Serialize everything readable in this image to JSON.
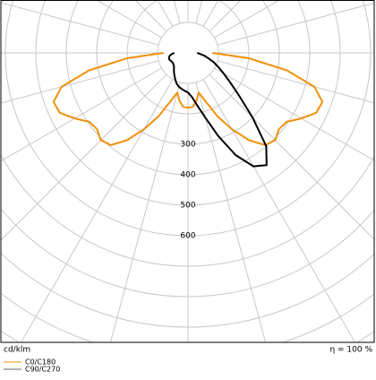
{
  "chart_data": {
    "type": "polar",
    "angles": [
      -90,
      -85,
      -80,
      -75,
      -70,
      -65,
      -60,
      -55,
      -50,
      -45,
      -40,
      -35,
      -30,
      -25,
      -20,
      -15,
      -10,
      -5,
      0,
      5,
      10,
      15,
      20,
      25,
      30,
      35,
      40,
      45,
      50,
      55,
      60,
      65,
      70,
      75,
      80,
      85,
      90
    ],
    "series": [
      {
        "name": "C0/C180",
        "color": "#f0900a",
        "values": [
          80,
          200,
          330,
          430,
          470,
          465,
          430,
          395,
          390,
          405,
          395,
          350,
          290,
          230,
          170,
          135,
          160,
          178,
          180,
          178,
          160,
          135,
          170,
          230,
          290,
          350,
          395,
          405,
          390,
          395,
          430,
          465,
          470,
          430,
          330,
          200,
          80
        ]
      },
      {
        "name": "C90/C270",
        "color": "#000000",
        "legend_color": "#666666",
        "values": [
          45,
          55,
          62,
          65,
          65,
          62,
          60,
          60,
          62,
          65,
          72,
          80,
          88,
          98,
          108,
          115,
          120,
          125,
          130,
          145,
          175,
          220,
          290,
          370,
          430,
          450,
          400,
          300,
          220,
          170,
          135,
          110,
          90,
          70,
          55,
          40,
          30
        ]
      }
    ],
    "rlim": [
      0,
      1000
    ],
    "rticks": [
      300,
      400,
      500,
      600
    ],
    "rgrid": [
      100,
      200,
      300,
      400,
      500,
      600,
      700,
      800,
      900,
      1000,
      1100
    ],
    "angle_grid_step": 15,
    "unit_label": "cd/klm",
    "efficiency_label": "η = 100 %"
  }
}
